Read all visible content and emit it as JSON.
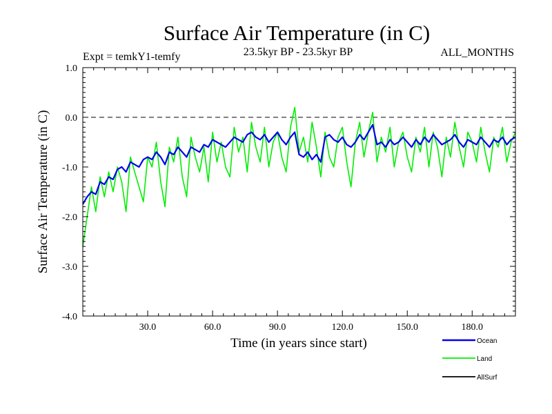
{
  "chart_data": {
    "type": "line",
    "title": "Surface Air Temperature (in C)",
    "subtitle": "23.5kyr BP - 23.5kyr BP",
    "experiment_label": "Expt = temkY1-temfy",
    "period_label": "ALL_MONTHS",
    "xlabel": "Time (in years since start)",
    "ylabel": "Surface Air Temperature (in C)",
    "xlim": [
      0,
      200
    ],
    "ylim": [
      -4.0,
      1.0
    ],
    "x_ticks": [
      30,
      60,
      90,
      120,
      150,
      180
    ],
    "x_tick_labels": [
      "30.0",
      "60.0",
      "90.0",
      "120.0",
      "150.0",
      "180.0"
    ],
    "y_ticks": [
      1.0,
      0.0,
      -1.0,
      -2.0,
      -3.0,
      -4.0
    ],
    "y_tick_labels": [
      "1.0",
      "0.0",
      "-1.0",
      "-2.0",
      "-3.0",
      "-4.0"
    ],
    "reference_line": 0.0,
    "x_step": 2,
    "series": [
      {
        "name": "Land",
        "color": "#00ee00",
        "values": [
          -2.6,
          -2.0,
          -1.4,
          -1.9,
          -1.2,
          -1.6,
          -1.1,
          -1.5,
          -1.0,
          -1.3,
          -1.9,
          -0.8,
          -1.1,
          -1.4,
          -1.7,
          -0.8,
          -1.0,
          -0.5,
          -1.3,
          -1.8,
          -0.6,
          -0.9,
          -0.4,
          -1.2,
          -1.6,
          -0.4,
          -0.8,
          -1.1,
          -0.6,
          -1.3,
          -0.3,
          -0.9,
          -0.5,
          -1.0,
          -1.2,
          -0.2,
          -0.7,
          -0.4,
          -1.1,
          -0.1,
          -0.6,
          -0.9,
          -0.2,
          -1.0,
          -0.5,
          -0.3,
          -0.8,
          -1.1,
          -0.2,
          0.2,
          -0.7,
          -0.4,
          -0.9,
          -0.1,
          -0.6,
          -1.2,
          -0.3,
          -0.8,
          -1.0,
          -0.4,
          -0.2,
          -0.9,
          -1.4,
          -0.5,
          -0.1,
          -0.8,
          -0.3,
          0.1,
          -0.9,
          -0.4,
          -0.7,
          -0.2,
          -1.0,
          -0.5,
          -0.3,
          -0.8,
          -1.1,
          -0.4,
          -0.7,
          -0.2,
          -1.0,
          -0.3,
          -0.6,
          -1.2,
          -0.4,
          -0.8,
          -0.1,
          -0.6,
          -1.0,
          -0.3,
          -0.5,
          -0.9,
          -0.2,
          -0.7,
          -1.1,
          -0.4,
          -0.6,
          -0.2,
          -0.9,
          -0.5,
          -0.3
        ]
      },
      {
        "name": "Ocean",
        "color": "#0000ee",
        "values": [
          -1.75,
          -1.6,
          -1.5,
          -1.55,
          -1.3,
          -1.35,
          -1.2,
          -1.25,
          -1.05,
          -1.0,
          -1.1,
          -0.9,
          -0.95,
          -1.0,
          -0.85,
          -0.8,
          -0.85,
          -0.7,
          -0.8,
          -0.95,
          -0.7,
          -0.75,
          -0.6,
          -0.7,
          -0.8,
          -0.6,
          -0.65,
          -0.7,
          -0.55,
          -0.6,
          -0.45,
          -0.5,
          -0.55,
          -0.6,
          -0.5,
          -0.4,
          -0.45,
          -0.5,
          -0.35,
          -0.3,
          -0.4,
          -0.45,
          -0.35,
          -0.5,
          -0.4,
          -0.3,
          -0.45,
          -0.55,
          -0.4,
          -0.3,
          -0.75,
          -0.8,
          -0.7,
          -0.85,
          -0.75,
          -0.9,
          -0.4,
          -0.35,
          -0.45,
          -0.5,
          -0.4,
          -0.55,
          -0.6,
          -0.5,
          -0.35,
          -0.45,
          -0.3,
          -0.15,
          -0.55,
          -0.5,
          -0.6,
          -0.45,
          -0.55,
          -0.5,
          -0.4,
          -0.5,
          -0.6,
          -0.45,
          -0.55,
          -0.4,
          -0.5,
          -0.35,
          -0.45,
          -0.55,
          -0.5,
          -0.45,
          -0.35,
          -0.5,
          -0.6,
          -0.45,
          -0.5,
          -0.55,
          -0.4,
          -0.5,
          -0.6,
          -0.45,
          -0.5,
          -0.4,
          -0.55,
          -0.45,
          -0.4
        ]
      },
      {
        "name": "AllSurf",
        "color": "#000000",
        "values": []
      }
    ],
    "legend_order": [
      "Ocean",
      "Land",
      "AllSurf"
    ]
  }
}
